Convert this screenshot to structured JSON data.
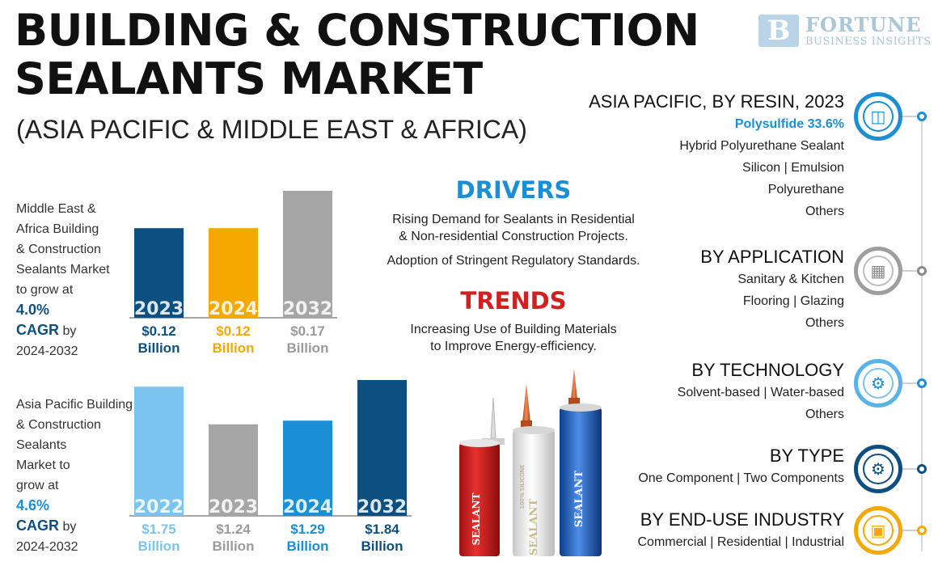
{
  "header": {
    "title_line1": "BUILDING & CONSTRUCTION",
    "title_line2": "SEALANTS MARKET",
    "subtitle": "(ASIA PACIFIC & MIDDLE EAST & AFRICA)"
  },
  "logo": {
    "mark": "B",
    "line1": "FORTUNE",
    "line2": "BUSINESS INSIGHTS"
  },
  "mea": {
    "desc_lines": [
      "Middle East &",
      "Africa Building",
      "& Construction",
      "Sealants Market",
      "to grow at"
    ],
    "cagr_value": "4.0%",
    "cagr_label": "CAGR",
    "cagr_by": "by",
    "period": "2024-2032"
  },
  "apac": {
    "desc_lines": [
      "Asia Pacific Building",
      "& Construction",
      "Sealants",
      "Market to",
      "grow at"
    ],
    "cagr_value": "4.6%",
    "cagr_label": "CAGR",
    "cagr_by": "by",
    "period": "2024-2032"
  },
  "chart_data": [
    {
      "type": "bar",
      "title": "",
      "categories": [
        "2023",
        "2024",
        "2032"
      ],
      "values": [
        0.12,
        0.12,
        0.17
      ],
      "value_labels": [
        "$0.12",
        "$0.12",
        "$0.17"
      ],
      "unit_label": "Billion",
      "colors": [
        "#0d4f80",
        "#f5a800",
        "#a6a6a6"
      ]
    },
    {
      "type": "bar",
      "title": "",
      "categories": [
        "2022",
        "2023",
        "2024",
        "2032"
      ],
      "values": [
        1.75,
        1.24,
        1.29,
        1.84
      ],
      "value_labels": [
        "$1.75",
        "$1.24",
        "$1.29",
        "$1.84"
      ],
      "unit_label": "Billion",
      "colors": [
        "#7cc4f0",
        "#a6a6a6",
        "#1a8fd6",
        "#0d4f80"
      ]
    }
  ],
  "drivers": {
    "heading": "DRIVERS",
    "line1": "Rising Demand for Sealants in Residential",
    "line2": "& Non-residential Construction Projects.",
    "line3": "Adoption of Stringent Regulatory Standards."
  },
  "trends": {
    "heading": "TRENDS",
    "line1": "Increasing Use of Building Materials",
    "line2": "to Improve Energy-efficiency."
  },
  "products": {
    "tube1": "SEALANT",
    "tube2": "SEALANT",
    "tube2_small": "100% SILICONE",
    "tube3": "SEALANT"
  },
  "segments": {
    "resin": {
      "heading": "ASIA PACIFIC, BY RESIN, 2023",
      "highlight": "Polysulfide 33.6%",
      "lines": [
        "Hybrid Polyurethane Sealant",
        "Silicon  |  Emulsion",
        "Polyurethane",
        "Others"
      ]
    },
    "application": {
      "heading": "BY APPLICATION",
      "lines": [
        "Sanitary & Kitchen",
        "Flooring  |  Glazing",
        "Others"
      ]
    },
    "technology": {
      "heading": "BY TECHNOLOGY",
      "lines": [
        "Solvent-based  |  Water-based",
        "Others"
      ]
    },
    "type": {
      "heading": "BY TYPE",
      "lines": [
        "One Component  |  Two Components"
      ]
    },
    "enduse": {
      "heading": "BY END-USE INDUSTRY",
      "lines": [
        "Commercial  |  Residential  |  Industrial"
      ]
    }
  },
  "colors": {
    "navy": "#0d4f80",
    "blue": "#1a8fd6",
    "orange": "#f5a800",
    "gray": "#a6a6a6",
    "red": "#d12020"
  },
  "icons": [
    "jar-icon",
    "building-icon",
    "gear-circuit-icon",
    "gear-network-icon",
    "city-icon"
  ]
}
